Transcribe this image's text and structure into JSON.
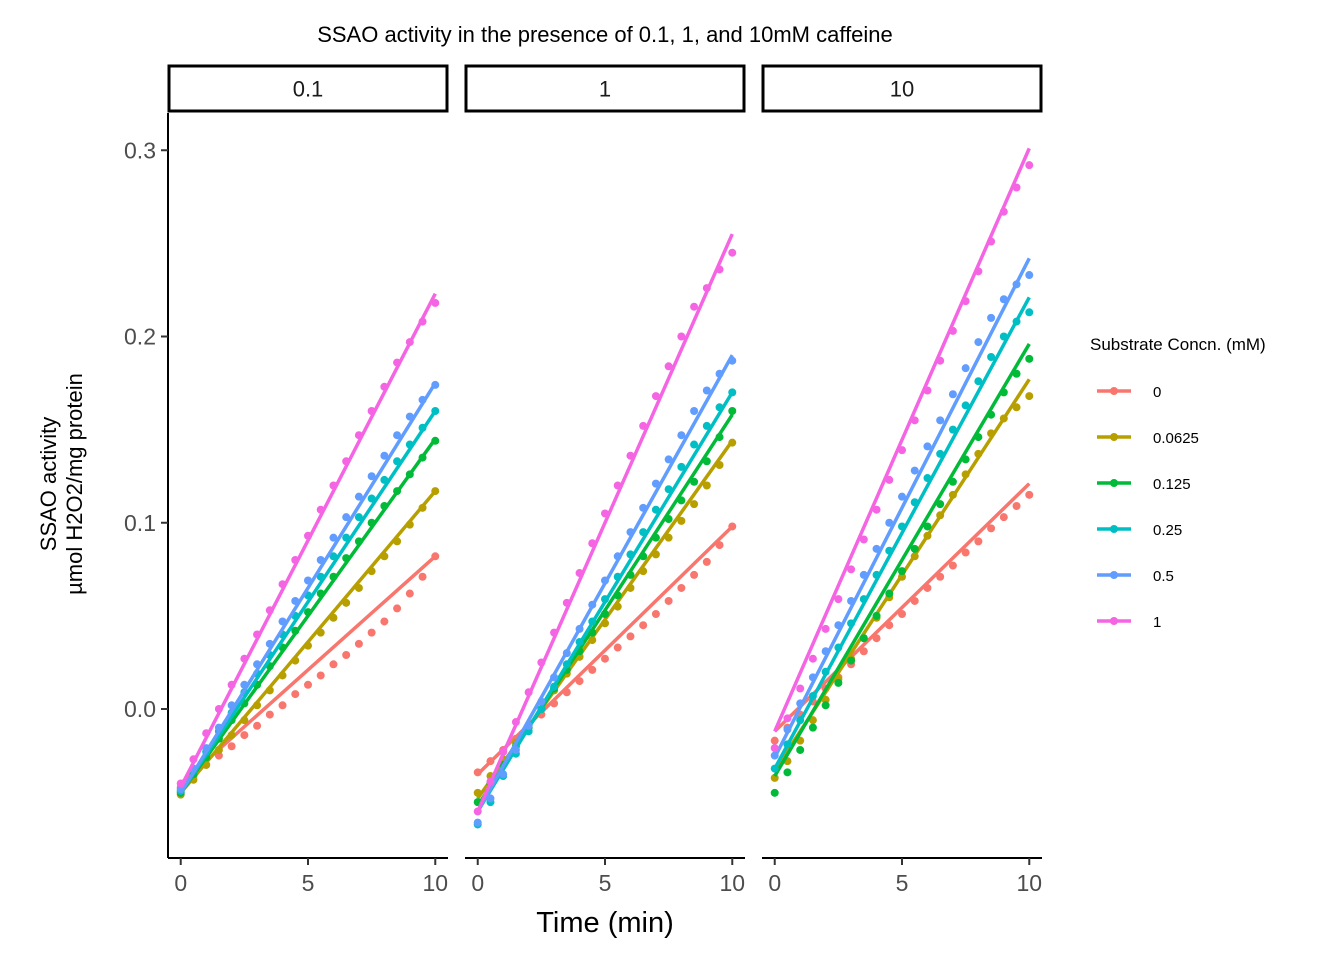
{
  "chart_data": {
    "type": "scatter",
    "title": "SSAO activity in the presence of 0.1, 1, and 10mM caffeine",
    "xlabel": "Time (min)",
    "ylabel_line1": "SSAO activity",
    "ylabel_line2": "µmol H2O2/mg protein",
    "xlim": [
      -0.5,
      10.5
    ],
    "ylim": [
      -0.08,
      0.32
    ],
    "x_ticks": [
      0,
      5,
      10
    ],
    "x_tick_labels": [
      "0",
      "5",
      "10"
    ],
    "y_ticks": [
      0.0,
      0.1,
      0.2,
      0.3
    ],
    "y_tick_labels": [
      "0.0",
      "0.1",
      "0.2",
      "0.3"
    ],
    "grid": false,
    "legend": {
      "title": "Substrate Concn. (mM)",
      "placement": "right",
      "entries": [
        {
          "label": "0",
          "color": "#F8766D"
        },
        {
          "label": "0.0625",
          "color": "#B79F00"
        },
        {
          "label": "0.125",
          "color": "#00BA38"
        },
        {
          "label": "0.25",
          "color": "#00BFC4"
        },
        {
          "label": "0.5",
          "color": "#619CFF"
        },
        {
          "label": "1",
          "color": "#F564E3"
        }
      ]
    },
    "times": [
      0,
      0.5,
      1,
      1.5,
      2,
      2.5,
      3,
      3.5,
      4,
      4.5,
      5,
      5.5,
      6,
      6.5,
      7,
      7.5,
      8,
      8.5,
      9,
      9.5,
      10
    ],
    "panels": [
      {
        "label": "0.1",
        "series": [
          {
            "name": "0",
            "color": "#F8766D",
            "fit": [
              -0.04,
              0.0122
            ],
            "y": [
              -0.042,
              -0.036,
              -0.03,
              -0.025,
              -0.02,
              -0.014,
              -0.009,
              -0.003,
              0.002,
              0.008,
              0.013,
              0.018,
              0.024,
              0.029,
              0.035,
              0.041,
              0.047,
              0.054,
              0.062,
              0.071,
              0.082
            ]
          },
          {
            "name": "0.0625",
            "color": "#B79F00",
            "fit": [
              -0.045,
              0.0162
            ],
            "y": [
              -0.046,
              -0.038,
              -0.03,
              -0.022,
              -0.014,
              -0.006,
              0.002,
              0.01,
              0.018,
              0.026,
              0.034,
              0.041,
              0.049,
              0.057,
              0.065,
              0.074,
              0.082,
              0.09,
              0.099,
              0.108,
              0.117
            ]
          },
          {
            "name": "0.125",
            "color": "#00BA38",
            "fit": [
              -0.045,
              0.019
            ],
            "y": [
              -0.045,
              -0.035,
              -0.026,
              -0.016,
              -0.006,
              0.003,
              0.013,
              0.023,
              0.033,
              0.042,
              0.052,
              0.062,
              0.071,
              0.081,
              0.09,
              0.1,
              0.109,
              0.117,
              0.126,
              0.135,
              0.144
            ]
          },
          {
            "name": "0.25",
            "color": "#00BFC4",
            "fit": [
              -0.045,
              0.0205
            ],
            "y": [
              -0.044,
              -0.033,
              -0.023,
              -0.012,
              -0.002,
              0.009,
              0.019,
              0.029,
              0.04,
              0.05,
              0.061,
              0.071,
              0.082,
              0.092,
              0.103,
              0.113,
              0.123,
              0.133,
              0.142,
              0.151,
              0.16
            ]
          },
          {
            "name": "0.5",
            "color": "#619CFF",
            "fit": [
              -0.045,
              0.022
            ],
            "y": [
              -0.043,
              -0.032,
              -0.021,
              -0.01,
              0.002,
              0.013,
              0.024,
              0.035,
              0.047,
              0.058,
              0.069,
              0.08,
              0.092,
              0.103,
              0.114,
              0.125,
              0.136,
              0.147,
              0.157,
              0.166,
              0.174
            ]
          },
          {
            "name": "1",
            "color": "#F564E3",
            "fit": [
              -0.042,
              0.0265
            ],
            "y": [
              -0.04,
              -0.027,
              -0.013,
              0.0,
              0.013,
              0.027,
              0.04,
              0.053,
              0.067,
              0.08,
              0.093,
              0.107,
              0.12,
              0.133,
              0.147,
              0.16,
              0.173,
              0.186,
              0.197,
              0.208,
              0.218
            ]
          }
        ]
      },
      {
        "label": "1",
        "series": [
          {
            "name": "0",
            "color": "#F8766D",
            "fit": [
              -0.035,
              0.0133
            ],
            "y": [
              -0.034,
              -0.028,
              -0.022,
              -0.016,
              -0.01,
              -0.003,
              0.003,
              0.009,
              0.015,
              0.021,
              0.027,
              0.033,
              0.039,
              0.045,
              0.051,
              0.058,
              0.065,
              0.072,
              0.079,
              0.088,
              0.098
            ]
          },
          {
            "name": "0.0625",
            "color": "#B79F00",
            "fit": [
              -0.048,
              0.0192
            ],
            "y": [
              -0.045,
              -0.036,
              -0.027,
              -0.018,
              -0.009,
              0.0,
              0.01,
              0.019,
              0.028,
              0.037,
              0.046,
              0.055,
              0.065,
              0.074,
              0.083,
              0.092,
              0.101,
              0.11,
              0.12,
              0.131,
              0.143
            ]
          },
          {
            "name": "0.125",
            "color": "#00BA38",
            "fit": [
              -0.052,
              0.021
            ],
            "y": [
              -0.05,
              -0.04,
              -0.03,
              -0.02,
              -0.01,
              0.0,
              0.011,
              0.021,
              0.031,
              0.041,
              0.051,
              0.061,
              0.072,
              0.082,
              0.092,
              0.102,
              0.112,
              0.122,
              0.133,
              0.146,
              0.16
            ]
          },
          {
            "name": "0.25",
            "color": "#00BFC4",
            "fit": [
              -0.055,
              0.0225
            ],
            "y": [
              -0.062,
              -0.05,
              -0.036,
              -0.024,
              -0.012,
              0.0,
              0.012,
              0.024,
              0.036,
              0.047,
              0.059,
              0.071,
              0.083,
              0.095,
              0.107,
              0.118,
              0.13,
              0.142,
              0.152,
              0.162,
              0.17
            ]
          },
          {
            "name": "0.5",
            "color": "#619CFF",
            "fit": [
              -0.055,
              0.0245
            ],
            "y": [
              -0.061,
              -0.048,
              -0.035,
              -0.022,
              -0.009,
              0.004,
              0.017,
              0.03,
              0.043,
              0.056,
              0.069,
              0.082,
              0.095,
              0.108,
              0.121,
              0.134,
              0.147,
              0.16,
              0.171,
              0.18,
              0.187
            ]
          },
          {
            "name": "1",
            "color": "#F564E3",
            "fit": [
              -0.055,
              0.031
            ],
            "y": [
              -0.055,
              -0.039,
              -0.023,
              -0.007,
              0.009,
              0.025,
              0.041,
              0.057,
              0.073,
              0.089,
              0.105,
              0.12,
              0.136,
              0.152,
              0.168,
              0.184,
              0.2,
              0.216,
              0.226,
              0.236,
              0.245
            ]
          }
        ]
      },
      {
        "label": "10",
        "series": [
          {
            "name": "0",
            "color": "#F8766D",
            "fit": [
              -0.012,
              0.0133
            ],
            "y": [
              -0.017,
              -0.01,
              -0.003,
              0.004,
              0.011,
              0.017,
              0.024,
              0.031,
              0.038,
              0.045,
              0.051,
              0.058,
              0.065,
              0.071,
              0.077,
              0.084,
              0.09,
              0.097,
              0.103,
              0.109,
              0.115
            ]
          },
          {
            "name": "0.0625",
            "color": "#B79F00",
            "fit": [
              -0.033,
              0.021
            ],
            "y": [
              -0.037,
              -0.028,
              -0.017,
              -0.006,
              0.005,
              0.016,
              0.027,
              0.038,
              0.049,
              0.06,
              0.071,
              0.082,
              0.093,
              0.104,
              0.115,
              0.126,
              0.137,
              0.148,
              0.156,
              0.162,
              0.168
            ]
          },
          {
            "name": "0.125",
            "color": "#00BA38",
            "fit": [
              -0.036,
              0.0232
            ],
            "y": [
              -0.045,
              -0.034,
              -0.022,
              -0.01,
              0.002,
              0.014,
              0.026,
              0.038,
              0.05,
              0.062,
              0.074,
              0.086,
              0.098,
              0.11,
              0.122,
              0.134,
              0.146,
              0.158,
              0.17,
              0.18,
              0.188
            ]
          },
          {
            "name": "0.25",
            "color": "#00BFC4",
            "fit": [
              -0.032,
              0.0253
            ],
            "y": [
              -0.032,
              -0.019,
              -0.006,
              0.007,
              0.02,
              0.033,
              0.046,
              0.059,
              0.072,
              0.085,
              0.098,
              0.111,
              0.124,
              0.137,
              0.15,
              0.163,
              0.176,
              0.189,
              0.2,
              0.208,
              0.213
            ]
          },
          {
            "name": "0.5",
            "color": "#619CFF",
            "fit": [
              -0.026,
              0.0268
            ],
            "y": [
              -0.025,
              -0.011,
              0.003,
              0.017,
              0.031,
              0.045,
              0.058,
              0.072,
              0.086,
              0.1,
              0.114,
              0.128,
              0.141,
              0.155,
              0.169,
              0.183,
              0.197,
              0.21,
              0.22,
              0.228,
              0.233
            ]
          },
          {
            "name": "1",
            "color": "#F564E3",
            "fit": [
              -0.012,
              0.0313
            ],
            "y": [
              -0.021,
              -0.005,
              0.011,
              0.027,
              0.043,
              0.059,
              0.075,
              0.091,
              0.107,
              0.123,
              0.139,
              0.155,
              0.171,
              0.187,
              0.203,
              0.219,
              0.235,
              0.251,
              0.267,
              0.28,
              0.292
            ]
          }
        ]
      }
    ]
  }
}
